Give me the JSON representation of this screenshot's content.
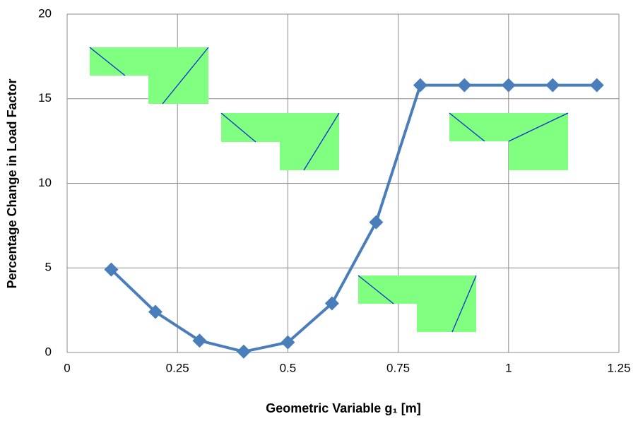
{
  "chart_data": {
    "type": "line",
    "x_label": "Geometric Variable g₁ [m]",
    "y_label": "Percentage Change in Load Factor",
    "x": [
      0.1,
      0.2,
      0.3,
      0.4,
      0.5,
      0.6,
      0.7,
      0.8,
      0.9,
      1.0,
      1.1,
      1.2
    ],
    "values": [
      4.9,
      2.4,
      0.7,
      0.05,
      0.6,
      2.9,
      7.7,
      15.8,
      15.8,
      15.8,
      15.8,
      15.8
    ],
    "color": "#4a7ebb",
    "xlim": [
      0,
      1.25
    ],
    "xticks": [
      0,
      0.25,
      0.5,
      0.75,
      1,
      1.25
    ],
    "ylim": [
      0,
      20
    ],
    "yticks": [
      0,
      5,
      10,
      15,
      20
    ],
    "grid": true
  }
}
